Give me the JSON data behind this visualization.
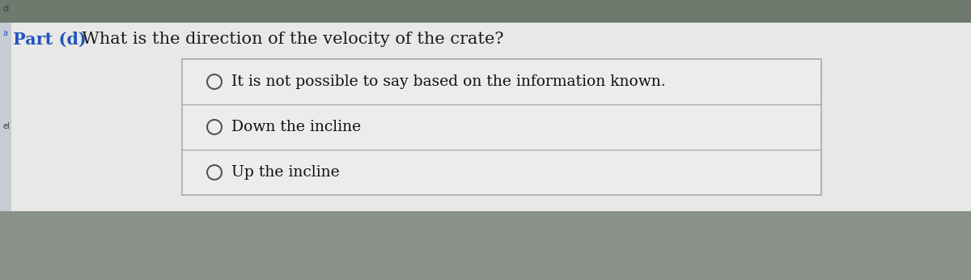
{
  "title_part": "Part (d)",
  "title_question": "  What is the direction of the velocity of the crate?",
  "options": [
    "It is not possible to say based on the information known.",
    "Down the incline",
    "Up the incline"
  ],
  "bg_color_outer": "#909990",
  "bg_color_top": "#6e7a6e",
  "bg_color_white": "#e8e8e6",
  "bg_color_bottom": "#8a928a",
  "box_bg": "#e8e8e6",
  "box_border": "#aaaaaa",
  "title_color_part": "#2255bb",
  "title_color_rest": "#1a1a1a",
  "option_text_color": "#111111",
  "circle_color": "#555555",
  "left_margin_color": "#8899aa",
  "font_family": "serif",
  "figsize": [
    12.0,
    3.46
  ],
  "dpi": 100,
  "title_fontsize": 15,
  "option_fontsize": 13.5
}
